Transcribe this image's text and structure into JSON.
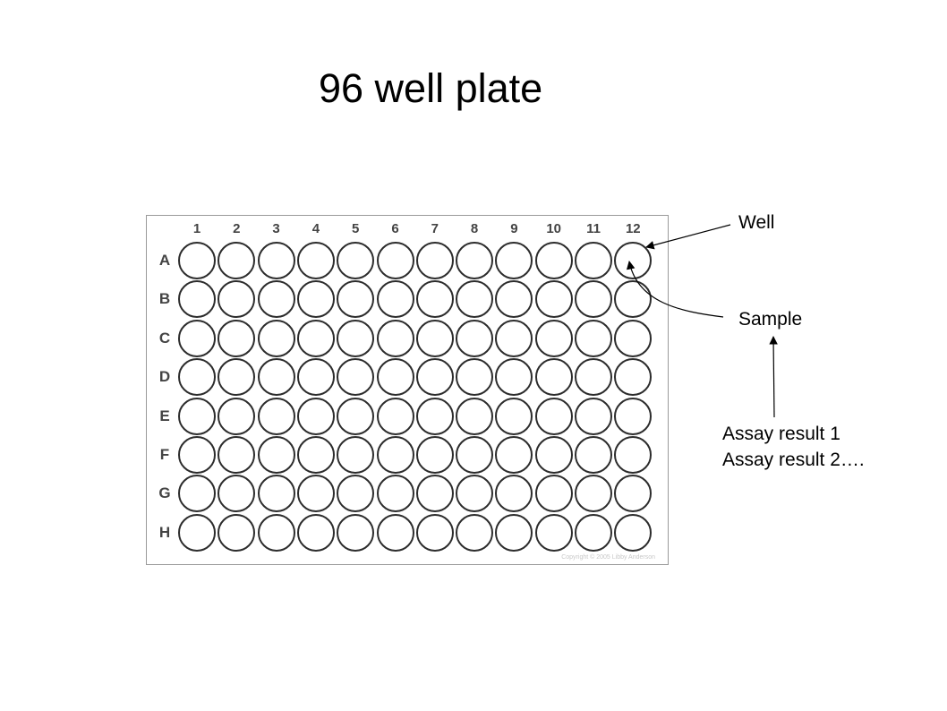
{
  "title": "96 well plate",
  "plate": {
    "columns": [
      "1",
      "2",
      "3",
      "4",
      "5",
      "6",
      "7",
      "8",
      "9",
      "10",
      "11",
      "12"
    ],
    "rows": [
      "A",
      "B",
      "C",
      "D",
      "E",
      "F",
      "G",
      "H"
    ],
    "copyright": "Copyright © 2005 Libby Anderson"
  },
  "annotations": {
    "well": "Well",
    "sample": "Sample",
    "assay_lines": [
      "Assay result 1",
      "Assay result 2…."
    ]
  },
  "colors": {
    "background": "#ffffff",
    "text": "#000000",
    "well_border": "#2c2c2c",
    "plate_border": "#9a9a9a"
  }
}
